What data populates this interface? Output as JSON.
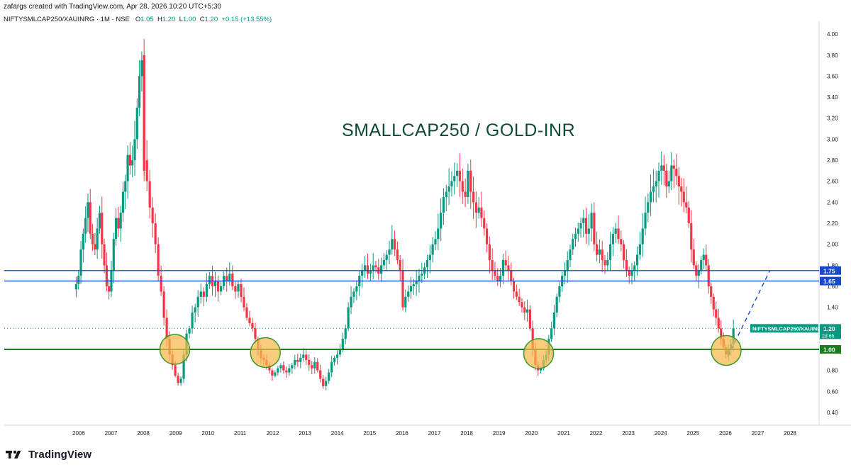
{
  "header": {
    "created_text": "zafargs created with TradingView.com, Apr 28, 2026 10:20 UTC+5:30",
    "symbol_text": "NIFTYSMLCAP250/XAUINRG · 1M · NSE",
    "o_label": "O",
    "o_value": "1.05",
    "h_label": "H",
    "h_value": "1.20",
    "l_label": "L",
    "l_value": "1.00",
    "c_label": "C",
    "c_value": "1.20",
    "change_text": "+0.15 (+13.55%)"
  },
  "footer": {
    "brand": "TradingView",
    "logo_icon": "tradingview-logo-icon"
  },
  "chart_data": {
    "type": "candlestick",
    "title": "SMALLCAP250 / GOLD-INR",
    "x_ticks": [
      "2006",
      "2007",
      "2008",
      "2009",
      "2010",
      "2011",
      "2012",
      "2013",
      "2014",
      "2015",
      "2016",
      "2017",
      "2018",
      "2019",
      "2020",
      "2021",
      "2022",
      "2023",
      "2024",
      "2025",
      "2026",
      "2027",
      "2028"
    ],
    "y_ticks": [
      "4.00",
      "3.80",
      "3.60",
      "3.40",
      "3.20",
      "3.00",
      "2.80",
      "2.60",
      "2.40",
      "2.20",
      "2.00",
      "1.80",
      "1.60",
      "1.40",
      "1.20",
      "1.00",
      "0.80",
      "0.60",
      "0.40"
    ],
    "y_range": [
      0.3,
      4.05
    ],
    "x_range": [
      2005.3,
      2028.6
    ],
    "colors": {
      "up": "#089981",
      "down": "#f23645",
      "hline_blue": "#1848cc",
      "hline_green": "#1b7d1b",
      "circle_fill": "#f7b84b",
      "circle_stroke": "#3a9a2a",
      "title": "#0f4a35"
    },
    "horizontal_lines": [
      {
        "value": 1.75,
        "label": "1.75",
        "color": "#1848cc"
      },
      {
        "value": 1.65,
        "label": "1.65",
        "color": "#1848cc"
      },
      {
        "value": 1.0,
        "label": "1.00",
        "color": "#1b7d1b"
      }
    ],
    "last_price": {
      "symbol": "NIFTYSMLCAP250/XAUINRG",
      "value": 1.2,
      "label": "1.20",
      "countdown": "2d 6h",
      "color": "#089981"
    },
    "projection": {
      "from": [
        2026.05,
        0.93
      ],
      "to": [
        2027.35,
        1.75
      ]
    },
    "support_circles": [
      {
        "x": 2008.95,
        "y": 1.0
      },
      {
        "x": 2011.75,
        "y": 0.97
      },
      {
        "x": 2020.2,
        "y": 0.96
      },
      {
        "x": 2026.0,
        "y": 0.99
      }
    ],
    "monthly_closes": [
      {
        "from": 2005.9,
        "to": 2008.0,
        "points": [
          1.62,
          1.7,
          1.95,
          2.1,
          2.25,
          2.4,
          2.1,
          2.0,
          1.95,
          2.15,
          2.3,
          2.0,
          1.8,
          1.6,
          1.55,
          1.75,
          2.05,
          2.25,
          2.15,
          2.3,
          2.5,
          2.6,
          2.85,
          2.75,
          2.8,
          3.0,
          3.3,
          3.6,
          3.75
        ]
      },
      {
        "from": 2008.0,
        "to": 2009.4,
        "points": [
          2.8,
          2.6,
          2.35,
          2.2,
          2.0,
          1.7,
          1.55,
          1.3,
          1.1,
          0.95,
          0.85,
          0.75,
          0.68,
          0.72,
          0.95,
          1.15
        ]
      },
      {
        "from": 2009.4,
        "to": 2011.0,
        "points": [
          1.2,
          1.35,
          1.4,
          1.5,
          1.55,
          1.5,
          1.62,
          1.7,
          1.6,
          1.65,
          1.55,
          1.6,
          1.7,
          1.65,
          1.72,
          1.6,
          1.55,
          1.62
        ]
      },
      {
        "from": 2011.0,
        "to": 2013.8,
        "points": [
          1.5,
          1.4,
          1.3,
          1.25,
          1.2,
          1.1,
          1.0,
          0.92,
          0.9,
          0.85,
          0.8,
          0.75,
          0.78,
          0.82,
          0.85,
          0.8,
          0.78,
          0.82,
          0.85,
          0.9,
          0.88,
          0.92,
          0.95,
          0.9,
          0.85,
          0.82,
          0.88,
          0.8,
          0.72,
          0.65,
          0.7,
          0.78
        ]
      },
      {
        "from": 2013.8,
        "to": 2015.0,
        "points": [
          0.88,
          0.92,
          0.95,
          1.0,
          1.1,
          1.2,
          1.4,
          1.5,
          1.55,
          1.6,
          1.7,
          1.75,
          1.8,
          1.72
        ]
      },
      {
        "from": 2015.0,
        "to": 2016.0,
        "points": [
          1.75,
          1.8,
          1.78,
          1.72,
          1.8,
          1.85,
          1.9,
          1.95,
          2.05,
          1.95,
          1.85,
          1.75
        ]
      },
      {
        "from": 2016.0,
        "to": 2018.1,
        "points": [
          1.4,
          1.5,
          1.55,
          1.6,
          1.62,
          1.65,
          1.7,
          1.72,
          1.78,
          1.85,
          1.9,
          2.0,
          2.05,
          2.15,
          2.3,
          2.45,
          2.5,
          2.55,
          2.6,
          2.65,
          2.7,
          2.6,
          2.5,
          2.45,
          2.7
        ]
      },
      {
        "from": 2018.1,
        "to": 2020.35,
        "points": [
          2.5,
          2.4,
          2.3,
          2.35,
          2.25,
          2.15,
          2.0,
          1.85,
          1.75,
          1.7,
          1.65,
          1.7,
          1.85,
          1.8,
          1.75,
          1.65,
          1.55,
          1.5,
          1.45,
          1.4,
          1.35,
          1.38,
          1.2,
          1.0,
          0.85,
          0.8,
          0.82
        ]
      },
      {
        "from": 2020.35,
        "to": 2022.0,
        "points": [
          0.9,
          0.95,
          1.1,
          1.2,
          1.35,
          1.5,
          1.6,
          1.7,
          1.75,
          1.85,
          1.95,
          2.05,
          2.1,
          2.15,
          2.2,
          2.25,
          2.1,
          2.15,
          2.3,
          2.0
        ]
      },
      {
        "from": 2022.0,
        "to": 2024.0,
        "points": [
          1.9,
          1.95,
          1.85,
          1.8,
          1.85,
          2.0,
          2.1,
          2.15,
          2.05,
          2.0,
          1.85,
          1.75,
          1.7,
          1.75,
          1.8,
          1.9,
          2.0,
          2.15,
          2.3,
          2.4,
          2.5,
          2.55,
          2.6,
          2.7
        ]
      },
      {
        "from": 2024.0,
        "to": 2026.3,
        "points": [
          2.75,
          2.7,
          2.55,
          2.6,
          2.75,
          2.72,
          2.65,
          2.55,
          2.5,
          2.4,
          2.35,
          2.2,
          1.95,
          1.8,
          1.7,
          1.75,
          1.85,
          1.9,
          1.8,
          1.6,
          1.5,
          1.38,
          1.3,
          1.2,
          1.1,
          1.02,
          0.95,
          1.0,
          1.05,
          1.2
        ]
      }
    ]
  }
}
